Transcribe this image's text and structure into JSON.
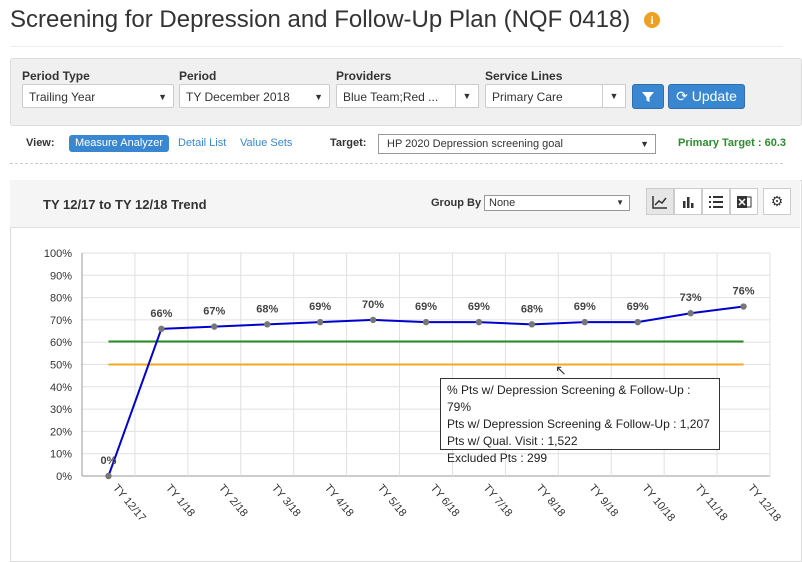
{
  "page": {
    "title": "Screening for Depression and Follow-Up Plan (NQF 0418)",
    "info_icon": "info-icon"
  },
  "filters": {
    "period_type": {
      "label": "Period Type",
      "value": "Trailing Year"
    },
    "period": {
      "label": "Period",
      "value": "TY December 2018"
    },
    "providers": {
      "label": "Providers",
      "value": "Blue Team;Red ..."
    },
    "service_lines": {
      "label": "Service Lines",
      "value": "Primary Care"
    },
    "filter_icon": "filter-icon",
    "update_label": "Update",
    "update_icon": "refresh-icon"
  },
  "view": {
    "label": "View:",
    "tabs": [
      "Measure Analyzer",
      "Detail List",
      "Value Sets"
    ],
    "active_tab": "Measure Analyzer",
    "target_label": "Target:",
    "target_value": "HP 2020 Depression screening goal",
    "primary_target": "Primary Target : 60.3"
  },
  "chart_panel": {
    "title": "TY 12/17 to TY 12/18 Trend",
    "group_by_label": "Group By",
    "group_by_value": "None",
    "tools": [
      "line-chart-icon",
      "bar-chart-icon",
      "list-icon",
      "excel-icon",
      "gear-icon"
    ]
  },
  "chart_data": {
    "type": "line",
    "categories": [
      "TY 12/17",
      "TY 1/18",
      "TY 2/18",
      "TY 3/18",
      "TY 4/18",
      "TY 5/18",
      "TY 6/18",
      "TY 7/18",
      "TY 8/18",
      "TY 9/18",
      "TY 10/18",
      "TY 11/18",
      "TY 12/18"
    ],
    "series": [
      {
        "values": [
          0,
          66,
          67,
          68,
          69,
          70,
          69,
          69,
          68,
          69,
          69,
          73,
          76
        ],
        "color": "#0000cc"
      }
    ],
    "data_labels": [
      "0%",
      "66%",
      "67%",
      "68%",
      "69%",
      "70%",
      "69%",
      "69%",
      "68%",
      "69%",
      "69%",
      "73%",
      "76%"
    ],
    "reference_lines": [
      {
        "value": 60.3,
        "color": "#228b22"
      },
      {
        "value": 50,
        "color": "#f5a623"
      }
    ],
    "y_ticks": [
      "0%",
      "10%",
      "20%",
      "30%",
      "40%",
      "50%",
      "60%",
      "70%",
      "80%",
      "90%",
      "100%"
    ],
    "ylim": [
      0,
      100
    ],
    "grid": true
  },
  "tooltip": {
    "line1": "% Pts w/ Depression Screening & Follow-Up : 79%",
    "line2": "Pts w/ Depression Screening & Follow-Up : 1,207",
    "line3": "Pts w/ Qual. Visit : 1,522",
    "line4": "Excluded Pts : 299"
  }
}
